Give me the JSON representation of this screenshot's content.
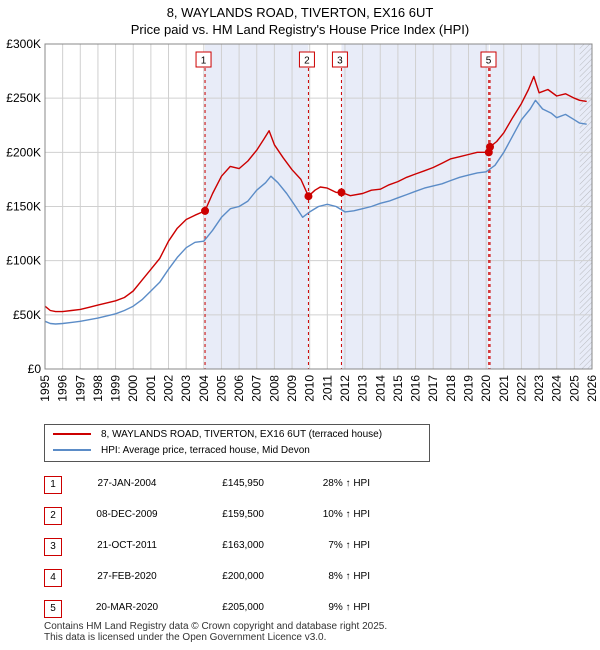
{
  "chart_data": {
    "type": "line",
    "title": "8, WAYLANDS ROAD, TIVERTON, EX16 6UT",
    "subtitle": "Price paid vs. HM Land Registry's House Price Index (HPI)",
    "xlim": [
      1995,
      2026
    ],
    "ylim": [
      0,
      300000
    ],
    "x_ticks": [
      "1995",
      "1996",
      "1997",
      "1998",
      "1999",
      "2000",
      "2001",
      "2002",
      "2003",
      "2004",
      "2005",
      "2006",
      "2007",
      "2008",
      "2009",
      "2010",
      "2011",
      "2012",
      "2013",
      "2014",
      "2015",
      "2016",
      "2017",
      "2018",
      "2019",
      "2020",
      "2021",
      "2022",
      "2023",
      "2024",
      "2025",
      "2026"
    ],
    "y_ticks": [
      {
        "value": 0,
        "label": "£0"
      },
      {
        "value": 50000,
        "label": "£50K"
      },
      {
        "value": 100000,
        "label": "£100K"
      },
      {
        "value": 150000,
        "label": "£150K"
      },
      {
        "value": 200000,
        "label": "£200K"
      },
      {
        "value": 250000,
        "label": "£250K"
      },
      {
        "value": 300000,
        "label": "£300K"
      }
    ],
    "grid": true,
    "shaded_periods": [
      [
        2004.07,
        2009.93
      ],
      [
        2011.8,
        2020.15
      ],
      [
        2020.22,
        2026
      ]
    ],
    "hatched_from": 2025.3,
    "series": [
      {
        "name": "8, WAYLANDS ROAD, TIVERTON, EX16 6UT (terraced house)",
        "color": "#cc0000",
        "x": [
          1995.0,
          1995.3,
          1995.6,
          1996.0,
          1996.5,
          1997.0,
          1997.5,
          1998.0,
          1998.5,
          1999.0,
          1999.5,
          2000.0,
          2000.5,
          2001.0,
          2001.5,
          2002.0,
          2002.5,
          2003.0,
          2003.5,
          2004.07,
          2004.5,
          2005.0,
          2005.5,
          2006.0,
          2006.5,
          2007.0,
          2007.4,
          2007.7,
          2008.0,
          2008.5,
          2009.0,
          2009.5,
          2009.93,
          2010.3,
          2010.6,
          2011.0,
          2011.5,
          2011.8,
          2012.3,
          2013.0,
          2013.5,
          2014.0,
          2014.5,
          2015.0,
          2015.5,
          2016.0,
          2016.5,
          2017.0,
          2017.5,
          2018.0,
          2018.5,
          2019.0,
          2019.5,
          2020.15,
          2020.22,
          2020.6,
          2021.0,
          2021.5,
          2022.0,
          2022.4,
          2022.7,
          2023.0,
          2023.5,
          2024.0,
          2024.5,
          2025.0,
          2025.3,
          2025.7
        ],
        "y": [
          58000,
          54000,
          53000,
          53000,
          54000,
          55000,
          57000,
          59000,
          61000,
          63000,
          66000,
          72000,
          82000,
          92000,
          102000,
          118000,
          130000,
          138000,
          142000,
          145950,
          162000,
          178000,
          187000,
          185000,
          192000,
          202000,
          212000,
          220000,
          207000,
          195000,
          184000,
          175000,
          159500,
          165000,
          168000,
          167000,
          163000,
          163000,
          160000,
          162000,
          165000,
          166000,
          170000,
          173000,
          177000,
          180000,
          183000,
          186000,
          190000,
          194000,
          196000,
          198000,
          200000,
          200000,
          205000,
          210000,
          218000,
          232000,
          245000,
          258000,
          270000,
          255000,
          258000,
          252000,
          254000,
          250000,
          248000,
          247000
        ]
      },
      {
        "name": "HPI: Average price, terraced house, Mid Devon",
        "color": "#5b8cc7",
        "x": [
          1995.0,
          1995.3,
          1995.6,
          1996.0,
          1996.5,
          1997.0,
          1997.5,
          1998.0,
          1998.5,
          1999.0,
          1999.5,
          2000.0,
          2000.5,
          2001.0,
          2001.5,
          2002.0,
          2002.5,
          2003.0,
          2003.5,
          2004.0,
          2004.5,
          2005.0,
          2005.5,
          2006.0,
          2006.5,
          2007.0,
          2007.5,
          2007.8,
          2008.2,
          2008.7,
          2009.2,
          2009.6,
          2010.0,
          2010.5,
          2011.0,
          2011.5,
          2012.0,
          2012.5,
          2013.0,
          2013.5,
          2014.0,
          2014.5,
          2015.0,
          2015.5,
          2016.0,
          2016.5,
          2017.0,
          2017.5,
          2018.0,
          2018.5,
          2019.0,
          2019.5,
          2020.0,
          2020.5,
          2021.0,
          2021.5,
          2022.0,
          2022.5,
          2022.8,
          2023.2,
          2023.7,
          2024.0,
          2024.5,
          2025.0,
          2025.3,
          2025.7
        ],
        "y": [
          44000,
          42000,
          41500,
          42000,
          43000,
          44000,
          45500,
          47000,
          49000,
          51000,
          54000,
          58000,
          64000,
          72000,
          80000,
          92000,
          103000,
          112000,
          117000,
          118000,
          128000,
          140000,
          148000,
          150000,
          155000,
          165000,
          172000,
          178000,
          172000,
          162000,
          150000,
          140000,
          145000,
          150000,
          152000,
          150000,
          145000,
          146000,
          148000,
          150000,
          153000,
          155000,
          158000,
          161000,
          164000,
          167000,
          169000,
          171000,
          174000,
          177000,
          179000,
          181000,
          182000,
          188000,
          200000,
          215000,
          230000,
          240000,
          248000,
          240000,
          236000,
          232000,
          235000,
          230000,
          227000,
          226000
        ]
      }
    ],
    "sale_markers": [
      {
        "label": "1",
        "x": 2004.07,
        "y": 145950
      },
      {
        "label": "2",
        "x": 2009.93,
        "y": 159500
      },
      {
        "label": "3",
        "x": 2011.8,
        "y": 163000
      },
      {
        "label": "4",
        "x": 2020.15,
        "y": 200000
      },
      {
        "label": "5",
        "x": 2020.22,
        "y": 205000
      }
    ],
    "marker_boxes_shown": [
      "1",
      "2",
      "3",
      "5"
    ]
  },
  "legend": {
    "property_label": "8, WAYLANDS ROAD, TIVERTON, EX16 6UT (terraced house)",
    "hpi_label": "HPI: Average price, terraced house, Mid Devon"
  },
  "sales": [
    {
      "num": "1",
      "date": "27-JAN-2004",
      "price": "£145,950",
      "hpi": "28% ↑ HPI"
    },
    {
      "num": "2",
      "date": "08-DEC-2009",
      "price": "£159,500",
      "hpi": "10% ↑ HPI"
    },
    {
      "num": "3",
      "date": "21-OCT-2011",
      "price": "£163,000",
      "hpi": "7% ↑ HPI"
    },
    {
      "num": "4",
      "date": "27-FEB-2020",
      "price": "£200,000",
      "hpi": "8% ↑ HPI"
    },
    {
      "num": "5",
      "date": "20-MAR-2020",
      "price": "£205,000",
      "hpi": "9% ↑ HPI"
    }
  ],
  "footer": {
    "line1": "Contains HM Land Registry data © Crown copyright and database right 2025.",
    "line2": "This data is licensed under the Open Government Licence v3.0."
  }
}
